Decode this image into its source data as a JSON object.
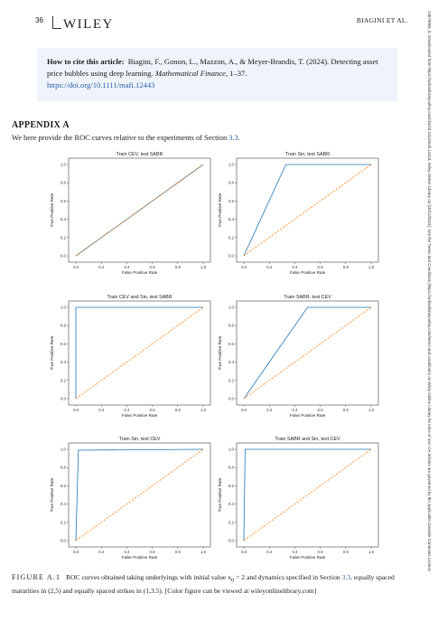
{
  "header": {
    "page_number": "36",
    "journal_logo": "WILEY",
    "running_head": "BIAGINI ET AL."
  },
  "citation": {
    "label": "How to cite this article:",
    "body": "Biagini, F., Gonon, L., Mazzon, A., & Meyer-Brandis, T. (2024). Detecting asset price bubbles using deep learning.",
    "journal": "Mathematical Finance",
    "pages": ", 1–37.",
    "doi": "https://doi.org/10.1111/mafi.12443"
  },
  "appendix": {
    "title": "APPENDIX A",
    "body_prefix": "We here provide the ROC curves relative to the experiments of Section ",
    "section_ref": "3.3",
    "body_suffix": "."
  },
  "chart_data": [
    {
      "type": "line",
      "title": "Train CEV, test SABR",
      "xlabel": "False Positive Rate",
      "ylabel": "True Positive Rate",
      "xlim": [
        0,
        1
      ],
      "ylim": [
        0,
        1
      ],
      "legend": "none",
      "grid": false,
      "series": [
        {
          "style": "roc",
          "color": "#1f77b4",
          "x": [
            0,
            1
          ],
          "y": [
            0,
            1
          ]
        },
        {
          "style": "chance",
          "color": "#ff7f0e",
          "x": [
            0,
            1
          ],
          "y": [
            0,
            1
          ]
        }
      ]
    },
    {
      "type": "line",
      "title": "Train Sin, test SABR",
      "xlabel": "False Positive Rate",
      "ylabel": "True Positive Rate",
      "xlim": [
        0,
        1
      ],
      "ylim": [
        0,
        1
      ],
      "legend": "none",
      "grid": false,
      "series": [
        {
          "style": "roc",
          "color": "#1f77b4",
          "x": [
            0,
            0.33,
            1
          ],
          "y": [
            0,
            1,
            1
          ]
        },
        {
          "style": "chance",
          "color": "#ff7f0e",
          "x": [
            0,
            1
          ],
          "y": [
            0,
            1
          ]
        }
      ]
    },
    {
      "type": "line",
      "title": "Train CEV and Sin, test SABR",
      "xlabel": "False Positive Rate",
      "ylabel": "True Positive Rate",
      "xlim": [
        0,
        1
      ],
      "ylim": [
        0,
        1
      ],
      "legend": "none",
      "grid": false,
      "series": [
        {
          "style": "roc",
          "color": "#1f77b4",
          "x": [
            0,
            0,
            1
          ],
          "y": [
            0,
            1,
            1
          ]
        },
        {
          "style": "chance",
          "color": "#ff7f0e",
          "x": [
            0,
            1
          ],
          "y": [
            0,
            1
          ]
        }
      ]
    },
    {
      "type": "line",
      "title": "Train SABR, test CEV",
      "xlabel": "False Positive Rate",
      "ylabel": "True Positive Rate",
      "xlim": [
        0,
        1
      ],
      "ylim": [
        0,
        1
      ],
      "legend": "none",
      "grid": false,
      "series": [
        {
          "style": "roc",
          "color": "#1f77b4",
          "x": [
            0,
            0.5,
            1
          ],
          "y": [
            0,
            1,
            1
          ]
        },
        {
          "style": "chance",
          "color": "#ff7f0e",
          "x": [
            0,
            1
          ],
          "y": [
            0,
            1
          ]
        }
      ]
    },
    {
      "type": "line",
      "title": "Train Sin, test CEV",
      "xlabel": "False Positive Rate",
      "ylabel": "True Positive Rate",
      "xlim": [
        0,
        1
      ],
      "ylim": [
        0,
        1
      ],
      "legend": "none",
      "grid": false,
      "series": [
        {
          "style": "roc",
          "color": "#1f77b4",
          "x": [
            0,
            0.02,
            1
          ],
          "y": [
            0,
            0.99,
            1
          ]
        },
        {
          "style": "chance",
          "color": "#ff7f0e",
          "x": [
            0,
            1
          ],
          "y": [
            0,
            1
          ]
        }
      ]
    },
    {
      "type": "line",
      "title": "Train SABR and Sin, test CEV",
      "xlabel": "False Positive Rate",
      "ylabel": "True Positive Rate",
      "xlim": [
        0,
        1
      ],
      "ylim": [
        0,
        1
      ],
      "legend": "none",
      "grid": false,
      "series": [
        {
          "style": "roc",
          "color": "#1f77b4",
          "x": [
            0,
            0.01,
            1
          ],
          "y": [
            0,
            1,
            1
          ]
        },
        {
          "style": "chance",
          "color": "#ff7f0e",
          "x": [
            0,
            1
          ],
          "y": [
            0,
            1
          ]
        }
      ]
    }
  ],
  "tick_labels": [
    "0.0",
    "0.2",
    "0.4",
    "0.6",
    "0.8",
    "1.0"
  ],
  "caption": {
    "label": "FIGURE A.1",
    "text_1": "ROC curves obtained taking underlyings with initial value x",
    "sub": "0",
    "text_2": " = 2 and dynamics specified in Section ",
    "section_ref": "3.3",
    "text_3": ", equally spaced maturities in (2,5) and equally spaced strikes in (1,3.5). [Color figure can be viewed at wileyonlinelibrary.com]"
  },
  "side_notice": "14679965, 0, Downloaded from https://onlinelibrary.wiley.com/doi/10.1111/mafi.12443, Wiley Online Library on [10/12/2024]. See the Terms and Conditions (https://onlinelibrary.wiley.com/terms-and-conditions) on Wiley Online Library for rules of use; OA articles are governed by the applicable Creative Commons License"
}
